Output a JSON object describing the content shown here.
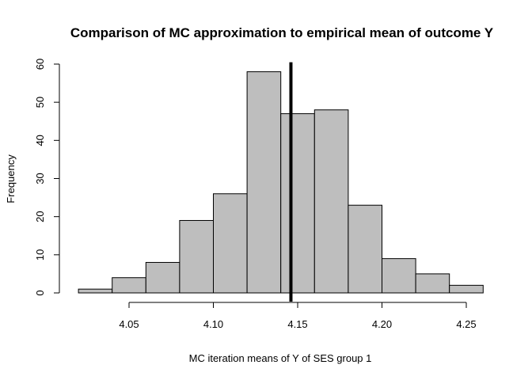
{
  "chart_data": {
    "type": "bar",
    "title": "Comparison of MC approximation to empirical mean of outcome Y",
    "xlabel": "MC iteration means of Y of SES group 1",
    "ylabel": "Frequency",
    "bin_edges": [
      4.02,
      4.04,
      4.06,
      4.08,
      4.1,
      4.12,
      4.14,
      4.16,
      4.18,
      4.2,
      4.22,
      4.24,
      4.26
    ],
    "values": [
      1,
      4,
      8,
      19,
      26,
      58,
      47,
      48,
      23,
      9,
      5,
      2
    ],
    "xticks": [
      4.05,
      4.1,
      4.15,
      4.2,
      4.25
    ],
    "xtick_labels": [
      "4.05",
      "4.10",
      "4.15",
      "4.20",
      "4.25"
    ],
    "yticks": [
      0,
      10,
      20,
      30,
      40,
      50,
      60
    ],
    "ytick_labels": [
      "0",
      "10",
      "20",
      "30",
      "40",
      "50",
      "60"
    ],
    "vline": 4.146,
    "ylim": [
      0,
      60
    ],
    "grid": false,
    "bar_color": "#bebebe",
    "line_color": "#000000"
  }
}
